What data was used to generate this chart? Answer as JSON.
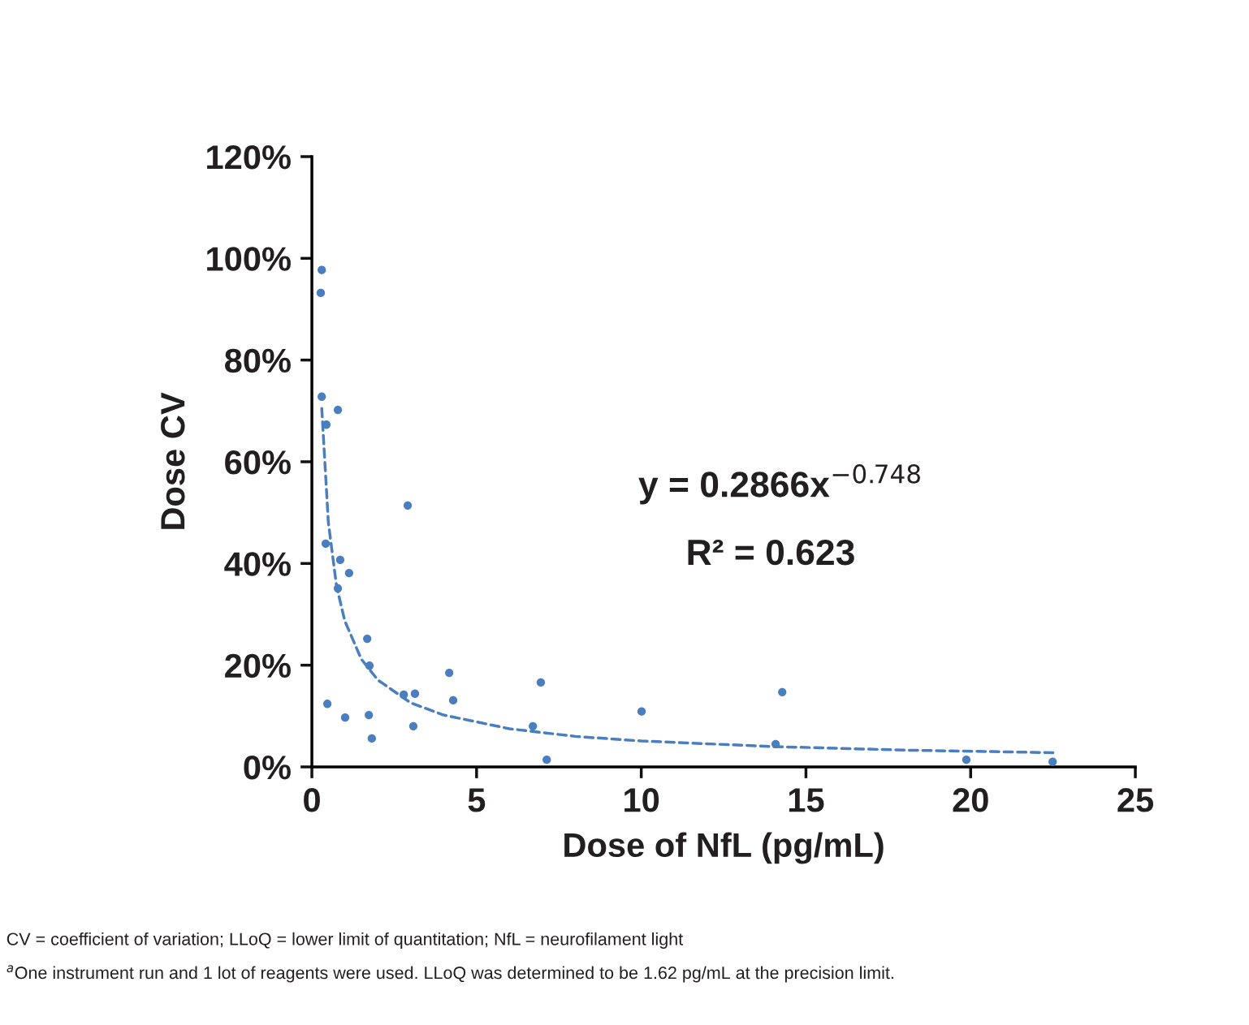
{
  "chart_data": {
    "type": "scatter",
    "xlabel": "Dose of NfL (pg/mL)",
    "ylabel": "Dose CV",
    "series": [
      {
        "color": "#4a7ebf",
        "marker": "circle",
        "x": [
          0.3,
          0.27,
          0.3,
          0.79,
          0.44,
          2.91,
          0.42,
          0.86,
          1.13,
          0.79,
          1.68,
          1.75,
          4.17,
          6.95,
          2.79,
          3.13,
          4.29,
          14.28,
          0.47,
          10.01,
          1.73,
          1.01,
          3.08,
          6.71,
          1.82,
          14.08,
          7.13,
          19.87,
          22.49
        ],
        "values": [
          97.7,
          93.2,
          72.8,
          70.2,
          67.3,
          51.4,
          43.9,
          40.7,
          38.1,
          35.1,
          25.2,
          19.9,
          18.5,
          16.6,
          14.2,
          14.4,
          13.1,
          14.7,
          12.4,
          10.9,
          10.2,
          9.7,
          8.0,
          8.0,
          5.6,
          4.5,
          1.4,
          1.4,
          1.0
        ]
      },
      {
        "type": "line",
        "color": "#4a7ebf",
        "line_style": "dashed",
        "marker": "none",
        "x": [
          0.3,
          0.5,
          0.75,
          1,
          1.5,
          2,
          3,
          4,
          6,
          8,
          10,
          14,
          18,
          22.5
        ],
        "values": [
          70.5,
          48.1,
          35.5,
          28.7,
          21.2,
          17.1,
          12.6,
          10.2,
          7.5,
          6.0,
          5.1,
          4.0,
          3.3,
          2.8
        ]
      }
    ],
    "xlim": [
      0,
      25
    ],
    "xticks": [
      0,
      5,
      10,
      15,
      20,
      25
    ],
    "ylim": [
      0,
      120
    ],
    "yticks": [
      {
        "value": 0,
        "label": "0%"
      },
      {
        "value": 20,
        "label": "20%"
      },
      {
        "value": 40,
        "label": "40%"
      },
      {
        "value": 60,
        "label": "60%"
      },
      {
        "value": 80,
        "label": "80%"
      },
      {
        "value": 100,
        "label": "100%"
      },
      {
        "value": 120,
        "label": "120%"
      }
    ],
    "grid": false,
    "legend": false,
    "annotations": [
      "y = 0.2866x$^{−0.748}$",
      "R² = 0.623",
      "CV = coefficient of variation; LLoQ = lower limit of quantitation; NfL = neurofilament light",
      "$^{a}$One instrument run and 1 lot of reagents were used. LLoQ was determined to be 1.62 pg/mL at the precision limit."
    ]
  }
}
